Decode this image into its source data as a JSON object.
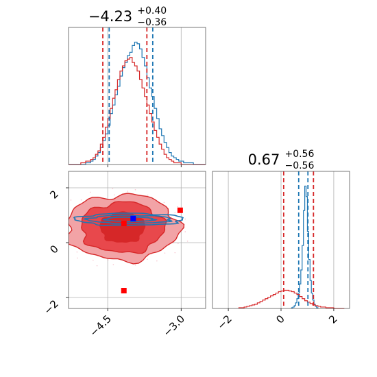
{
  "chart_data": [
    {
      "type": "histogram",
      "panel": "top-left",
      "title": {
        "main": "−4.23",
        "sup": "+0.40",
        "sub": "−0.36"
      },
      "xlim": [
        -5.3,
        -2.5
      ],
      "grid": true,
      "series": [
        {
          "name": "",
          "color": "#1f77b4",
          "quantiles": [
            -4.47,
            -3.58
          ],
          "bins": {
            "start": -5.3,
            "width": 0.05,
            "counts": [
              0,
              0,
              0,
              0,
              0,
              0,
              0,
              1,
              1,
              2,
              3,
              5,
              7,
              10,
              14,
              18,
              23,
              30,
              35,
              41,
              46,
              52,
              57,
              60,
              64,
              66,
              70,
              72,
              71,
              68,
              63,
              58,
              51,
              45,
              40,
              33,
              27,
              21,
              17,
              13,
              10,
              7,
              5,
              4,
              3,
              2,
              2,
              1,
              1,
              1,
              1,
              0,
              0,
              0,
              0,
              0
            ]
          }
        },
        {
          "name": "",
          "color": "#d62728",
          "quantiles": [
            -4.6,
            -3.7
          ],
          "bins": {
            "start": -5.3,
            "width": 0.05,
            "counts": [
              0,
              0,
              0,
              0,
              0,
              1,
              1,
              2,
              2,
              3,
              4,
              6,
              8,
              12,
              16,
              22,
              27,
              33,
              39,
              44,
              50,
              55,
              58,
              61,
              62,
              63,
              60,
              58,
              55,
              50,
              45,
              40,
              35,
              30,
              25,
              20,
              16,
              12,
              9,
              6,
              4,
              3,
              2,
              1,
              1,
              1,
              0,
              0,
              0,
              0,
              0,
              0,
              0,
              0,
              0,
              0
            ]
          }
        }
      ]
    },
    {
      "type": "histogram",
      "panel": "bottom-right",
      "title": {
        "main": "0.67",
        "sup": "+0.56",
        "sub": "−0.56"
      },
      "xlim": [
        -2.6,
        2.6
      ],
      "xticks": [
        "−2",
        "0",
        "2"
      ],
      "grid": true,
      "series": [
        {
          "name": "",
          "color": "#1f77b4",
          "quantiles": [
            0.67,
            1.02
          ],
          "bins": {
            "start": 0.4,
            "width": 0.05,
            "counts": [
              1,
              2,
              4,
              8,
              14,
              22,
              35,
              55,
              90,
              140,
              175,
              160,
              110,
              70,
              40,
              22,
              12,
              6,
              3,
              1
            ]
          }
        },
        {
          "name": "",
          "color": "#d62728",
          "quantiles": [
            0.1,
            1.23
          ],
          "bins": {
            "start": -1.6,
            "width": 0.1,
            "counts": [
              1,
              1,
              2,
              3,
              4,
              5,
              6,
              8,
              10,
              12,
              14,
              16,
              18,
              20,
              22,
              24,
              25,
              26,
              26,
              25,
              24,
              22,
              20,
              17,
              14,
              11,
              9,
              7,
              5,
              4,
              3,
              2,
              2,
              1,
              1,
              1,
              0,
              0,
              0,
              0
            ]
          }
        }
      ]
    },
    {
      "type": "contour",
      "panel": "bottom-left",
      "xlim": [
        -5.3,
        -2.5
      ],
      "ylim": [
        -2.4,
        2.6
      ],
      "xticks": [
        "−4.5",
        "−3.0"
      ],
      "yticks": [
        "−2",
        "0",
        "2"
      ],
      "grid": true,
      "markers": [
        {
          "x": -3.98,
          "y": 0.88,
          "color": "#0000ff"
        },
        {
          "x": -4.17,
          "y": 0.7,
          "color": "#ff0000"
        },
        {
          "x": -3.02,
          "y": 1.18,
          "color": "#ff0000"
        },
        {
          "x": -4.17,
          "y": -1.75,
          "color": "#ff0000"
        }
      ],
      "series": [
        {
          "name": "",
          "color": "#d62728",
          "center": [
            -4.2,
            0.55
          ],
          "levels": [
            [
              1.15,
              1.2
            ],
            [
              0.85,
              0.92
            ],
            [
              0.45,
              0.55
            ]
          ]
        },
        {
          "name": "",
          "color": "#1f77b4",
          "center": [
            -4.05,
            0.85
          ],
          "levels": [
            [
              1.1,
              0.22
            ],
            [
              0.85,
              0.15
            ],
            [
              0.5,
              0.08
            ]
          ]
        }
      ]
    }
  ]
}
